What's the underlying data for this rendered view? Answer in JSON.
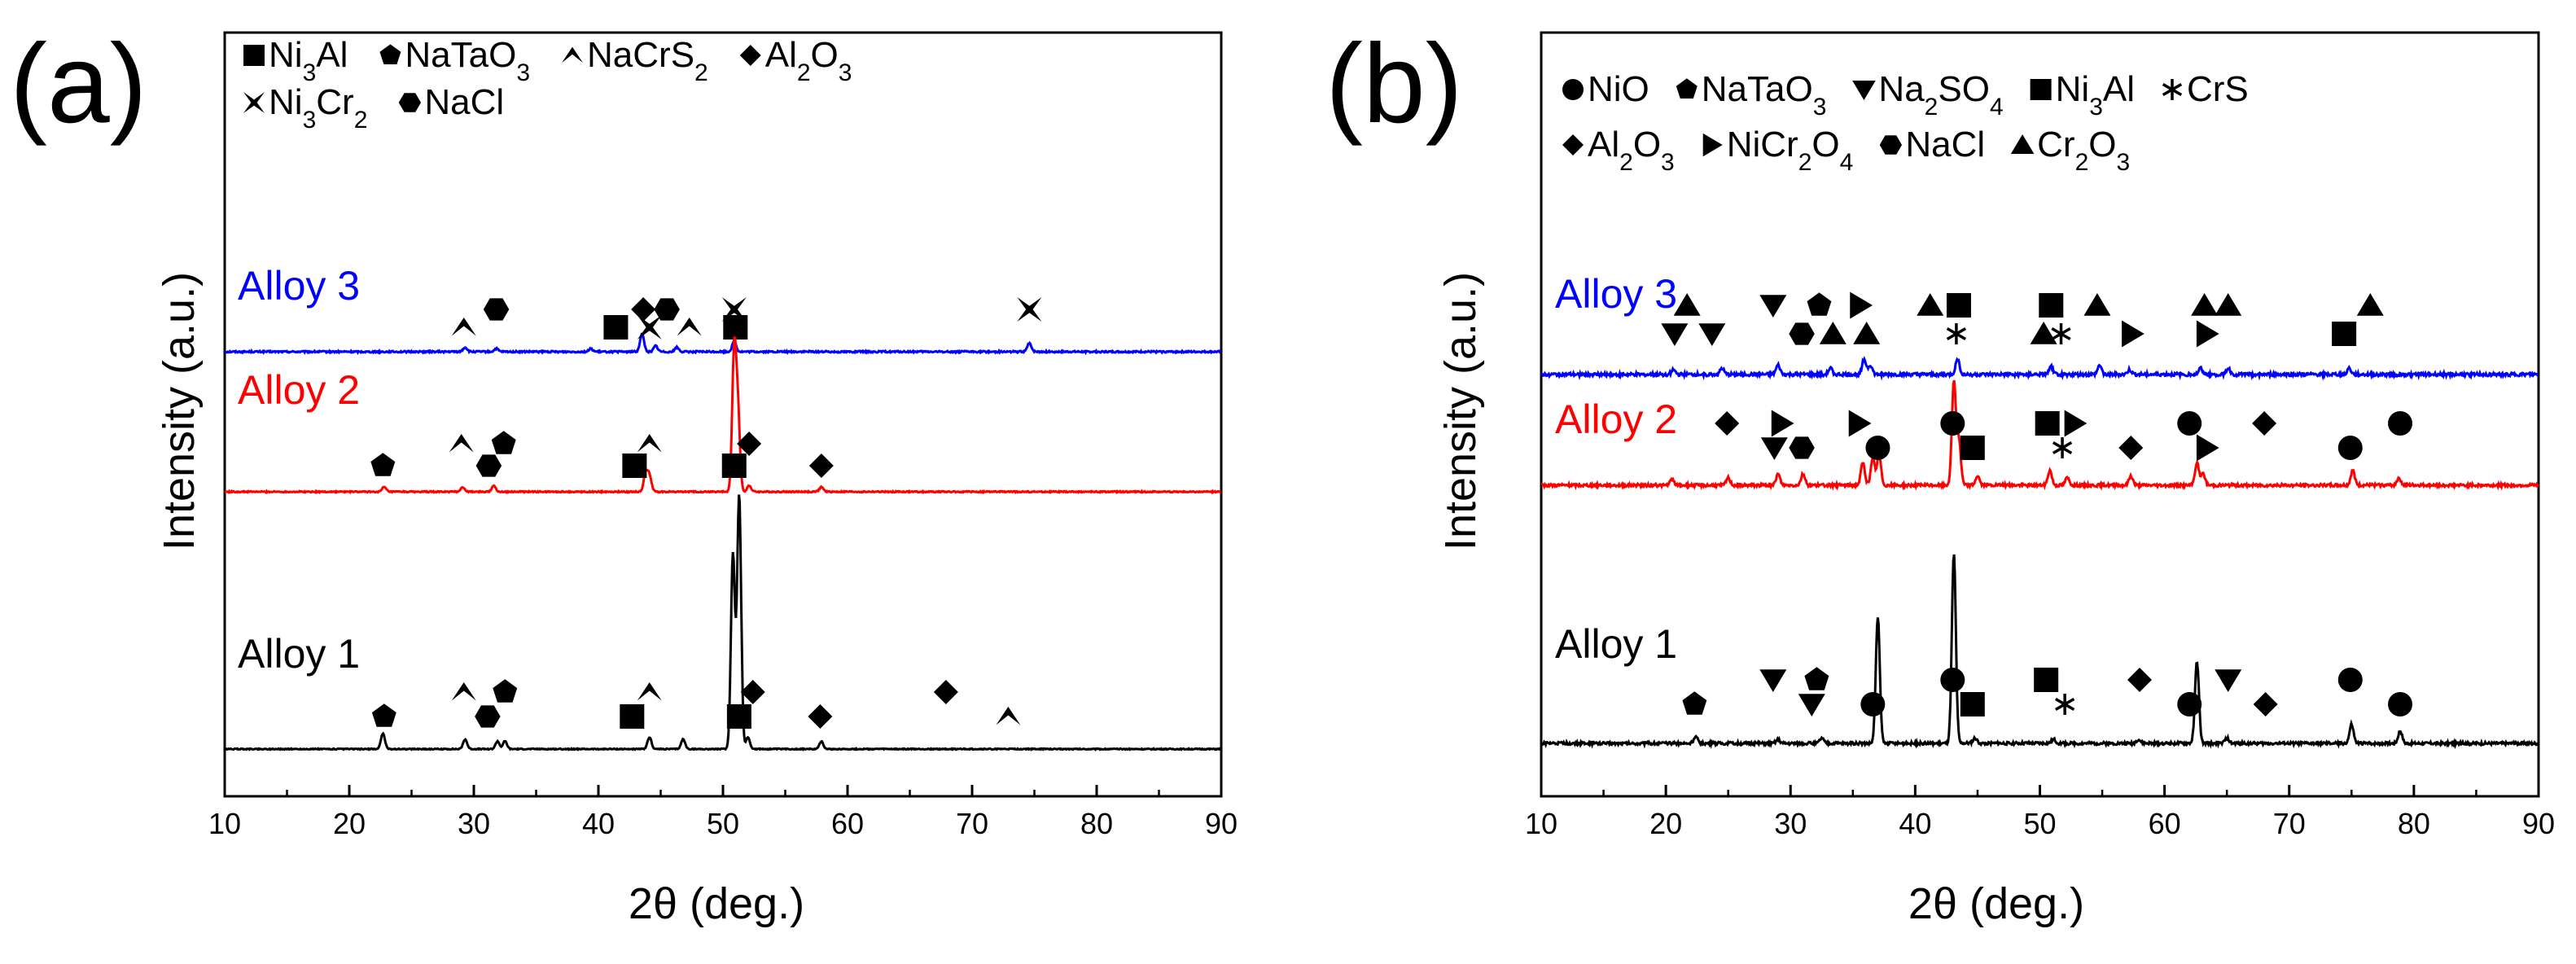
{
  "chart_data": [
    {
      "panel_label": "(a)",
      "type": "line",
      "xlabel": "2θ (deg.)",
      "ylabel": "Intensity (a.u.)",
      "xlim": [
        10,
        90
      ],
      "xticks": [
        10,
        20,
        30,
        40,
        50,
        60,
        70,
        80,
        90
      ],
      "legend": [
        {
          "marker": "square",
          "base": "Ni",
          "sub": "3",
          "rest": "Al"
        },
        {
          "marker": "pentagon",
          "base": "NaTaO",
          "sub": "3",
          "rest": ""
        },
        {
          "marker": "caret",
          "base": "NaCrS",
          "sub": "2",
          "rest": ""
        },
        {
          "marker": "diamond",
          "base": "Al",
          "sub": "2",
          "rest": "O",
          "sub2": "3"
        },
        {
          "marker": "star4",
          "base": "Ni",
          "sub": "3",
          "rest": "Cr",
          "sub2": "2"
        },
        {
          "marker": "hexagon",
          "base": "NaCl",
          "sub": "",
          "rest": ""
        }
      ],
      "series": [
        {
          "name": "Alloy 3",
          "color": "#0000ff",
          "peaks": [
            [
              29.3,
              3
            ],
            [
              31.8,
              2
            ],
            [
              39.4,
              2
            ],
            [
              43.5,
              12
            ],
            [
              44.6,
              4
            ],
            [
              46.3,
              3
            ],
            [
              50.9,
              7
            ],
            [
              74.6,
              6
            ]
          ],
          "markers": [
            {
              "type": "caret",
              "x": 29.2
            },
            {
              "type": "hexagon",
              "x": 31.8
            },
            {
              "type": "square",
              "x": 41.4
            },
            {
              "type": "diamond",
              "x": 43.6
            },
            {
              "type": "star4",
              "x": 44.1
            },
            {
              "type": "hexagon",
              "x": 45.5
            },
            {
              "type": "caret",
              "x": 47.3
            },
            {
              "type": "star4",
              "x": 50.9
            },
            {
              "type": "square",
              "x": 51.0
            },
            {
              "type": "star4",
              "x": 74.6
            }
          ]
        },
        {
          "name": "Alloy 2",
          "color": "#ff0000",
          "peaks": [
            [
              22.8,
              3
            ],
            [
              29.1,
              3
            ],
            [
              31.6,
              4
            ],
            [
              43.8,
              12
            ],
            [
              44.1,
              10
            ],
            [
              50.9,
              90
            ],
            [
              51.2,
              50
            ],
            [
              52.1,
              4
            ],
            [
              57.9,
              3
            ]
          ],
          "markers": [
            {
              "type": "pentagon",
              "x": 22.7
            },
            {
              "type": "caret",
              "x": 29.0
            },
            {
              "type": "hexagon",
              "x": 31.2
            },
            {
              "type": "pentagon",
              "x": 32.4
            },
            {
              "type": "square",
              "x": 42.9
            },
            {
              "type": "caret",
              "x": 44.1
            },
            {
              "type": "square",
              "x": 50.9
            },
            {
              "type": "diamond",
              "x": 52.1
            },
            {
              "type": "diamond",
              "x": 57.9
            }
          ]
        },
        {
          "name": "Alloy 1",
          "color": "#000000",
          "peaks": [
            [
              22.7,
              8
            ],
            [
              29.3,
              5
            ],
            [
              31.9,
              4
            ],
            [
              32.5,
              4
            ],
            [
              44.1,
              6
            ],
            [
              46.8,
              5
            ],
            [
              50.8,
              100
            ],
            [
              51.3,
              130
            ],
            [
              52.0,
              6
            ],
            [
              57.9,
              4
            ]
          ],
          "markers": [
            {
              "type": "pentagon",
              "x": 22.8
            },
            {
              "type": "caret",
              "x": 29.2
            },
            {
              "type": "hexagon",
              "x": 31.1
            },
            {
              "type": "pentagon",
              "x": 32.5
            },
            {
              "type": "square",
              "x": 42.7
            },
            {
              "type": "caret",
              "x": 44.1
            },
            {
              "type": "square",
              "x": 51.3
            },
            {
              "type": "diamond",
              "x": 52.4
            },
            {
              "type": "diamond",
              "x": 57.8
            },
            {
              "type": "diamond",
              "x": 67.9
            },
            {
              "type": "caret",
              "x": 72.9
            }
          ]
        }
      ]
    },
    {
      "panel_label": "(b)",
      "type": "line",
      "xlabel": "2θ (deg.)",
      "ylabel": "Intensity (a.u.)",
      "xlim": [
        10,
        90
      ],
      "xticks": [
        10,
        20,
        30,
        40,
        50,
        60,
        70,
        80,
        90
      ],
      "legend": [
        {
          "marker": "circle",
          "base": "NiO",
          "sub": "",
          "rest": ""
        },
        {
          "marker": "pentagon",
          "base": "NaTaO",
          "sub": "3",
          "rest": ""
        },
        {
          "marker": "triangle-down",
          "base": "Na",
          "sub": "2",
          "rest": "SO",
          "sub2": "4"
        },
        {
          "marker": "square",
          "base": "Ni",
          "sub": "3",
          "rest": "Al"
        },
        {
          "marker": "asterisk",
          "base": "CrS",
          "sub": "",
          "rest": ""
        },
        {
          "marker": "diamond",
          "base": "Al",
          "sub": "2",
          "rest": "O",
          "sub2": "3"
        },
        {
          "marker": "triangle-right",
          "base": "NiCr",
          "sub": "2",
          "rest": "O",
          "sub2": "4"
        },
        {
          "marker": "hexagon",
          "base": "NaCl",
          "sub": "",
          "rest": ""
        },
        {
          "marker": "triangle-up",
          "base": "Cr",
          "sub": "2",
          "rest": "O",
          "sub2": "3"
        }
      ],
      "series": [
        {
          "name": "Alloy 3",
          "color": "#0000ff",
          "peaks": [
            [
              20.6,
              3
            ],
            [
              24.5,
              4
            ],
            [
              29.0,
              6
            ],
            [
              33.2,
              4
            ],
            [
              35.9,
              10
            ],
            [
              36.4,
              6
            ],
            [
              43.4,
              10
            ],
            [
              50.9,
              5
            ],
            [
              54.8,
              6
            ],
            [
              57.2,
              3
            ],
            [
              62.9,
              4
            ],
            [
              65.1,
              4
            ],
            [
              74.8,
              4
            ]
          ],
          "markers": [
            {
              "type": "triangle-down",
              "x": 20.7
            },
            {
              "type": "triangle-up",
              "x": 21.7
            },
            {
              "type": "triangle-down",
              "x": 23.7
            },
            {
              "type": "triangle-down",
              "x": 28.6
            },
            {
              "type": "hexagon",
              "x": 30.9
            },
            {
              "type": "pentagon",
              "x": 32.3
            },
            {
              "type": "triangle-up",
              "x": 33.4
            },
            {
              "type": "triangle-right",
              "x": 35.6
            },
            {
              "type": "triangle-up",
              "x": 36.1
            },
            {
              "type": "triangle-up",
              "x": 41.2
            },
            {
              "type": "asterisk",
              "x": 43.3
            },
            {
              "type": "square",
              "x": 43.5
            },
            {
              "type": "triangle-up",
              "x": 50.3
            },
            {
              "type": "square",
              "x": 50.9
            },
            {
              "type": "asterisk",
              "x": 51.7
            },
            {
              "type": "triangle-up",
              "x": 54.6
            },
            {
              "type": "triangle-right",
              "x": 57.4
            },
            {
              "type": "triangle-up",
              "x": 63.2
            },
            {
              "type": "triangle-right",
              "x": 63.4
            },
            {
              "type": "triangle-up",
              "x": 65.1
            },
            {
              "type": "square",
              "x": 74.4
            },
            {
              "type": "triangle-up",
              "x": 76.5
            }
          ]
        },
        {
          "name": "Alloy 2",
          "color": "#ff0000",
          "peaks": [
            [
              20.5,
              3
            ],
            [
              25.0,
              4
            ],
            [
              29.0,
              6
            ],
            [
              31.0,
              6
            ],
            [
              35.8,
              12
            ],
            [
              36.6,
              14
            ],
            [
              37.1,
              16
            ],
            [
              43.1,
              55
            ],
            [
              43.5,
              24
            ],
            [
              45.0,
              5
            ],
            [
              50.8,
              8
            ],
            [
              52.2,
              4
            ],
            [
              57.3,
              5
            ],
            [
              62.6,
              12
            ],
            [
              63.1,
              6
            ],
            [
              75.1,
              8
            ],
            [
              78.8,
              4
            ]
          ],
          "markers": [
            {
              "type": "diamond",
              "x": 24.9
            },
            {
              "type": "triangle-down",
              "x": 28.7
            },
            {
              "type": "triangle-right",
              "x": 29.3
            },
            {
              "type": "hexagon",
              "x": 30.9
            },
            {
              "type": "triangle-right",
              "x": 35.5
            },
            {
              "type": "circle",
              "x": 37.0
            },
            {
              "type": "circle",
              "x": 43.0
            },
            {
              "type": "square",
              "x": 44.6
            },
            {
              "type": "square",
              "x": 50.6
            },
            {
              "type": "asterisk",
              "x": 51.8
            },
            {
              "type": "triangle-right",
              "x": 52.8
            },
            {
              "type": "diamond",
              "x": 57.3
            },
            {
              "type": "circle",
              "x": 62.0
            },
            {
              "type": "triangle-right",
              "x": 63.4
            },
            {
              "type": "diamond",
              "x": 68.0
            },
            {
              "type": "circle",
              "x": 74.9
            },
            {
              "type": "circle",
              "x": 78.9
            }
          ]
        },
        {
          "name": "Alloy 1",
          "color": "#000000",
          "peaks": [
            [
              22.4,
              5
            ],
            [
              29.0,
              3
            ],
            [
              32.5,
              4
            ],
            [
              37.0,
              100
            ],
            [
              43.1,
              150
            ],
            [
              44.8,
              4
            ],
            [
              51.1,
              3
            ],
            [
              57.9,
              3
            ],
            [
              62.6,
              65
            ],
            [
              65.0,
              4
            ],
            [
              75.0,
              15
            ],
            [
              78.9,
              10
            ]
          ],
          "markers": [
            {
              "type": "pentagon",
              "x": 22.3
            },
            {
              "type": "triangle-down",
              "x": 28.6
            },
            {
              "type": "triangle-down",
              "x": 31.7
            },
            {
              "type": "pentagon",
              "x": 32.1
            },
            {
              "type": "circle",
              "x": 36.6
            },
            {
              "type": "circle",
              "x": 43.0
            },
            {
              "type": "square",
              "x": 44.6
            },
            {
              "type": "square",
              "x": 50.5
            },
            {
              "type": "asterisk",
              "x": 52.0
            },
            {
              "type": "diamond",
              "x": 58.0
            },
            {
              "type": "circle",
              "x": 62.0
            },
            {
              "type": "triangle-down",
              "x": 65.1
            },
            {
              "type": "diamond",
              "x": 68.1
            },
            {
              "type": "circle",
              "x": 74.9
            },
            {
              "type": "circle",
              "x": 78.9
            }
          ]
        }
      ]
    }
  ]
}
